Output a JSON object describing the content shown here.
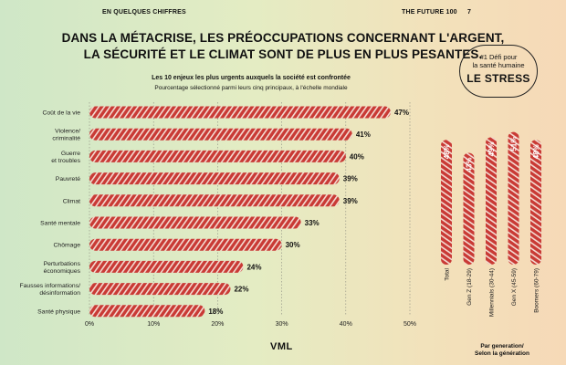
{
  "header": {
    "section": "EN QUELQUES CHIFFRES",
    "report": "THE FUTURE 100",
    "page": "7"
  },
  "headline": "DANS LA MÉTACRISE, LES PRÉOCCUPATIONS CONCERNANT L'ARGENT, LA SÉCURITÉ ET LE CLIMAT SONT DE PLUS EN PLUS PESANTES.",
  "badge": {
    "line1": "#1 Défi pour",
    "line2": "la santé humaine",
    "line3": "LE STRESS"
  },
  "brand": "VML",
  "colors": {
    "bar": "#c93a35",
    "stripe": "#f4dcd3"
  },
  "chart_data": [
    {
      "type": "bar",
      "orientation": "horizontal",
      "title": "Les 10 enjeux les plus urgents auxquels la société est confrontée",
      "subtitle": "Pourcentage sélectionné parmi leurs cinq principaux, à l'échelle mondiale",
      "categories": [
        "Coût de la vie",
        "Violence/\ncriminalité",
        "Guerre\net troubles",
        "Pauvreté",
        "Climat",
        "Santé mentale",
        "Chômage",
        "Perturbations\néconomiques",
        "Fausses informations/\ndésinformation",
        "Santé physique"
      ],
      "values": [
        47,
        41,
        40,
        39,
        39,
        33,
        30,
        24,
        22,
        18
      ],
      "value_labels": [
        "47%",
        "41%",
        "40%",
        "39%",
        "39%",
        "33%",
        "30%",
        "24%",
        "22%",
        "18%"
      ],
      "xlim": [
        0,
        50
      ],
      "xticks": [
        "0%",
        "10%",
        "20%",
        "30%",
        "40%",
        "50%"
      ],
      "grid": "vertical dotted"
    },
    {
      "type": "bar",
      "orientation": "vertical",
      "categories": [
        "Total",
        "Gen Z (18-29)",
        "Millennials (30-44)",
        "Gen X (45-59)",
        "Boomers (60-79)"
      ],
      "values": [
        48,
        43,
        49,
        51,
        48
      ],
      "value_labels": [
        "48%",
        "43%",
        "49%",
        "51%",
        "48%"
      ],
      "caption_line1": "Par generation/",
      "caption_line2": "Selon la génération"
    }
  ]
}
